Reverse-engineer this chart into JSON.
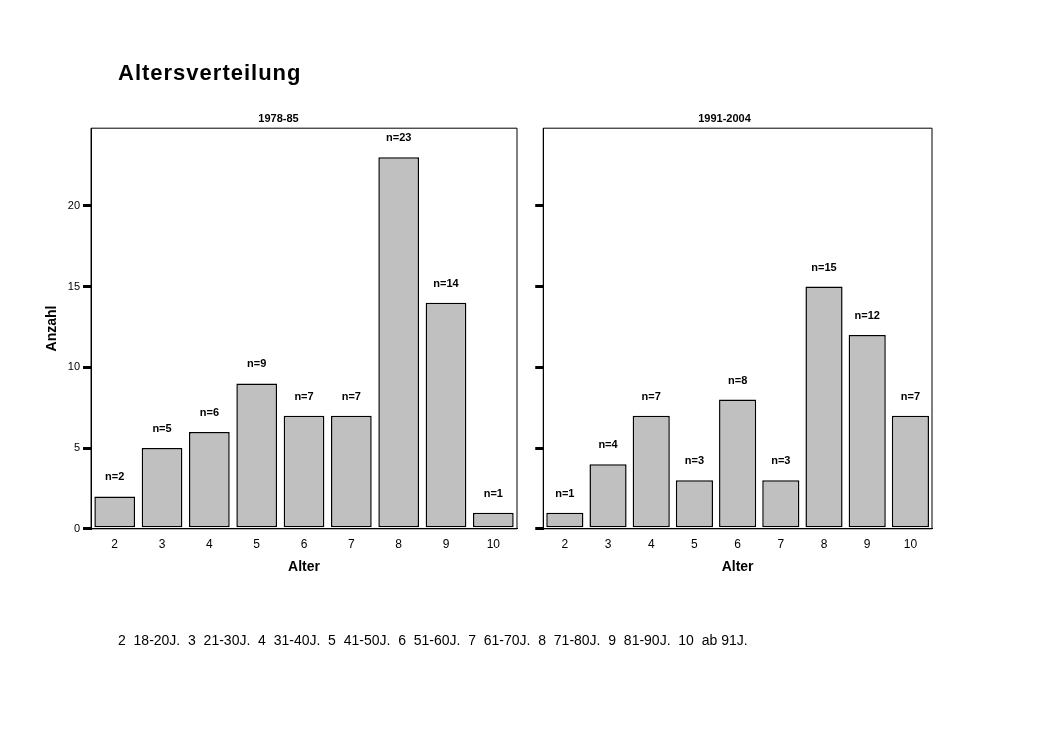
{
  "chart_data": [
    {
      "type": "bar",
      "title": "Altersverteilung",
      "subtitle": "1978-85",
      "xlabel": "Alter",
      "ylabel": "Anzahl",
      "categories": [
        "2",
        "3",
        "4",
        "5",
        "6",
        "7",
        "8",
        "9",
        "10"
      ],
      "values": [
        2,
        5,
        6,
        9,
        7,
        7,
        23,
        14,
        1
      ],
      "value_labels": [
        "n=2",
        "n=5",
        "n=6",
        "n=9",
        "n=7",
        "n=7",
        "n=23",
        "n=14",
        "n=1"
      ],
      "color": "#c0c0c0",
      "ylim": [
        0,
        24.8
      ],
      "yticks": [
        0,
        5,
        10,
        15,
        20
      ],
      "grid": false,
      "annotations": [
        "2  18-20J.  3  21-30J.  4  31-40J.  5  41-50J.  6  51-60J.  7  61-70J.  8  71-80J.  9  81-90J.  10  ab 91J."
      ]
    },
    {
      "type": "bar",
      "subtitle": "1991-2004",
      "xlabel": "Alter",
      "categories": [
        "2",
        "3",
        "4",
        "5",
        "6",
        "7",
        "8",
        "9",
        "10"
      ],
      "values": [
        1,
        4,
        7,
        3,
        8,
        3,
        15,
        12,
        7
      ],
      "value_labels": [
        "n=1",
        "n=4",
        "n=7",
        "n=3",
        "n=8",
        "n=3",
        "n=15",
        "n=12",
        "n=7"
      ],
      "color": "#c0c0c0",
      "ylim": [
        0,
        24.8
      ],
      "yticks": [
        0,
        5,
        10,
        15,
        20
      ],
      "grid": false,
      "tick_labels": "x"
    }
  ]
}
